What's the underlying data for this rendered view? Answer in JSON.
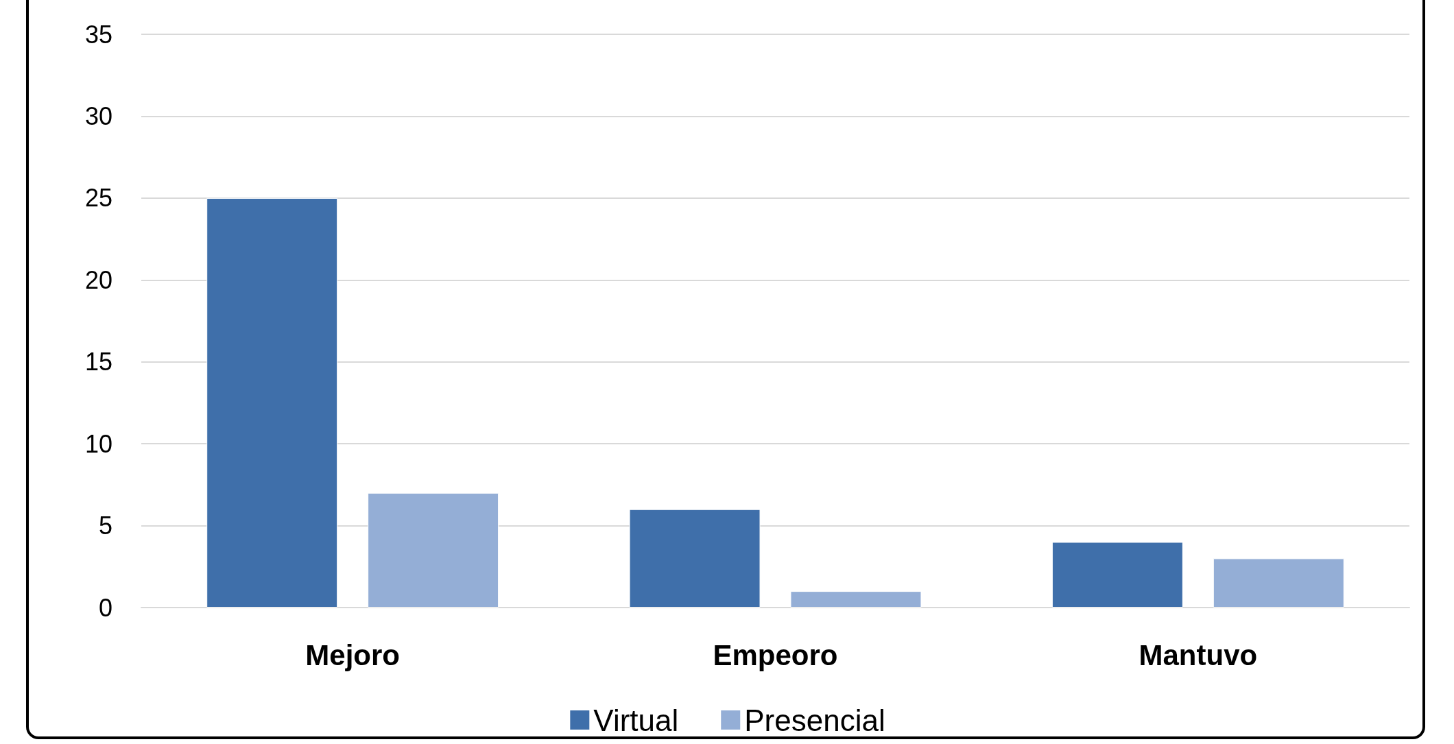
{
  "chart_data": {
    "type": "bar",
    "categories": [
      "Mejoro",
      "Empeoro",
      "Mantuvo"
    ],
    "series": [
      {
        "name": "Virtual",
        "color": "#3f6faa",
        "values": [
          25,
          6,
          4
        ]
      },
      {
        "name": "Presencial",
        "color": "#94aed6",
        "values": [
          7,
          1,
          3
        ]
      }
    ],
    "ylim": [
      0,
      35
    ],
    "yticks": [
      0,
      5,
      10,
      15,
      20,
      25,
      30,
      35
    ],
    "grid": "y",
    "legend": "bottom"
  }
}
